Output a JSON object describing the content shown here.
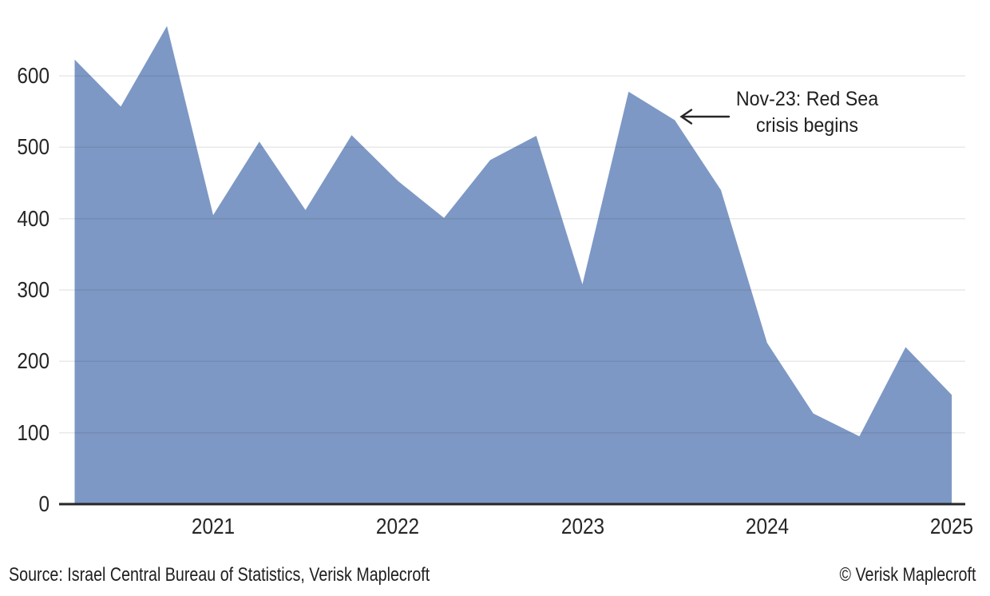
{
  "chart_data": {
    "type": "area",
    "title": "",
    "xlabel": "",
    "ylabel": "",
    "x": [
      "2020-Q2",
      "2020-Q3",
      "2020-Q4",
      "2021-Q1",
      "2021-Q2",
      "2021-Q3",
      "2021-Q4",
      "2022-Q1",
      "2022-Q2",
      "2022-Q3",
      "2022-Q4",
      "2023-Q1",
      "2023-Q2",
      "2023-Q3",
      "2023-Q4",
      "2024-Q1",
      "2024-Q2",
      "2024-Q3",
      "2024-Q4",
      "2025-Q1"
    ],
    "values": [
      623,
      557,
      670,
      405,
      508,
      412,
      517,
      453,
      401,
      482,
      516,
      308,
      578,
      538,
      440,
      226,
      127,
      95,
      220,
      153
    ],
    "ylim": [
      0,
      675
    ],
    "y_ticks": [
      0,
      100,
      200,
      300,
      400,
      500,
      600
    ],
    "x_tick_labels": [
      "2021",
      "2022",
      "2023",
      "2024",
      "2025"
    ],
    "grid": "horizontal",
    "legend": "none",
    "area_color": "#7D98C5",
    "axis_color": "#262626",
    "annotation": {
      "line1": "Nov-23: Red Sea",
      "line2": "crisis begins"
    }
  },
  "footer": {
    "source": "Source: Israel Central Bureau of Statistics, Verisk Maplecroft",
    "copyright": "© Verisk Maplecroft"
  }
}
